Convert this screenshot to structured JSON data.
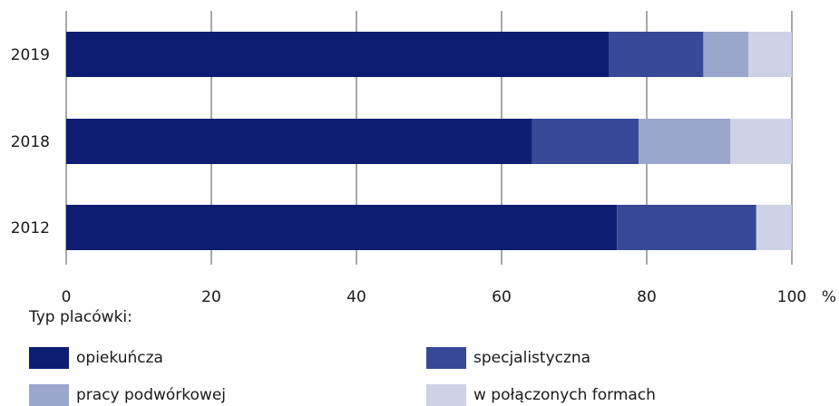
{
  "chart_data": {
    "type": "bar",
    "orientation": "horizontal",
    "stacked": true,
    "categories": [
      "2019",
      "2018",
      "2012"
    ],
    "series": [
      {
        "name": "opiekuńcza",
        "values": [
          74.8,
          64.2,
          75.9
        ],
        "color": "#0d1d72"
      },
      {
        "name": "specjalistyczna",
        "values": [
          13.0,
          14.7,
          19.2
        ],
        "color": "#364896"
      },
      {
        "name": "pracy podwórkowej",
        "values": [
          6.2,
          12.6,
          0
        ],
        "color": "#9aa6cc"
      },
      {
        "name": "w połączonych formach",
        "values": [
          6.0,
          8.5,
          4.9
        ],
        "color": "#cdd2e6"
      }
    ],
    "xlim": [
      0,
      100
    ],
    "xticks": [
      "0",
      "20",
      "40",
      "60",
      "80",
      "100"
    ],
    "x_unit": "%",
    "grid": true,
    "legend_title": "Typ placówki:",
    "legend_position": "bottom"
  }
}
